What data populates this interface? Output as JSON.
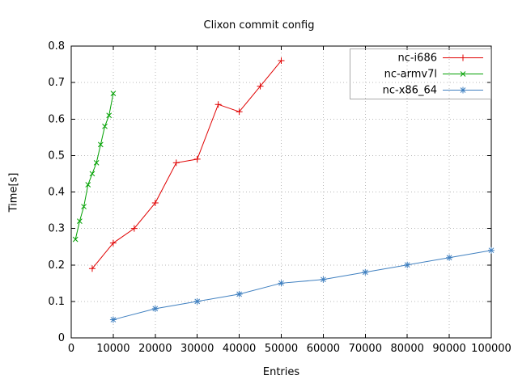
{
  "chart_data": {
    "type": "line",
    "title": "Clixon commit config",
    "xlabel": "Entries",
    "ylabel": "Time[s]",
    "xlim": [
      0,
      100000
    ],
    "ylim": [
      0,
      0.8
    ],
    "grid": true,
    "legend_position": "top-right",
    "x_tick_values": [
      0,
      10000,
      20000,
      30000,
      40000,
      50000,
      60000,
      70000,
      80000,
      90000,
      100000
    ],
    "x_tick_labels": [
      "0",
      "10000",
      "20000",
      "30000",
      "40000",
      "50000",
      "60000",
      "70000",
      "80000",
      "90000",
      "100000"
    ],
    "y_tick_values": [
      0,
      0.1,
      0.2,
      0.3,
      0.4,
      0.5,
      0.6,
      0.7,
      0.8
    ],
    "y_tick_labels": [
      "0",
      "0.1",
      "0.2",
      "0.3",
      "0.4",
      "0.5",
      "0.6",
      "0.7",
      "0.8"
    ],
    "series": [
      {
        "name": "nc-i686",
        "color": "#e00000",
        "marker": "plus",
        "x": [
          5000,
          10000,
          15000,
          20000,
          25000,
          30000,
          35000,
          40000,
          45000,
          50000
        ],
        "y": [
          0.19,
          0.26,
          0.3,
          0.37,
          0.48,
          0.49,
          0.64,
          0.62,
          0.69,
          0.76
        ]
      },
      {
        "name": "nc-armv7l",
        "color": "#00a000",
        "marker": "cross",
        "x": [
          1000,
          2000,
          3000,
          4000,
          5000,
          6000,
          7000,
          8000,
          9000,
          10000
        ],
        "y": [
          0.27,
          0.32,
          0.36,
          0.42,
          0.45,
          0.48,
          0.53,
          0.58,
          0.61,
          0.67
        ]
      },
      {
        "name": "nc-x86_64",
        "color": "#4080c0",
        "marker": "star",
        "x": [
          10000,
          20000,
          30000,
          40000,
          50000,
          60000,
          70000,
          80000,
          90000,
          100000
        ],
        "y": [
          0.05,
          0.08,
          0.1,
          0.12,
          0.15,
          0.16,
          0.18,
          0.2,
          0.22,
          0.24
        ]
      }
    ],
    "colors": {
      "grid": "#b8b8b8",
      "axis": "#000000",
      "text": "#000000",
      "legend_border": "#aaaaaa",
      "background": "#ffffff"
    }
  }
}
